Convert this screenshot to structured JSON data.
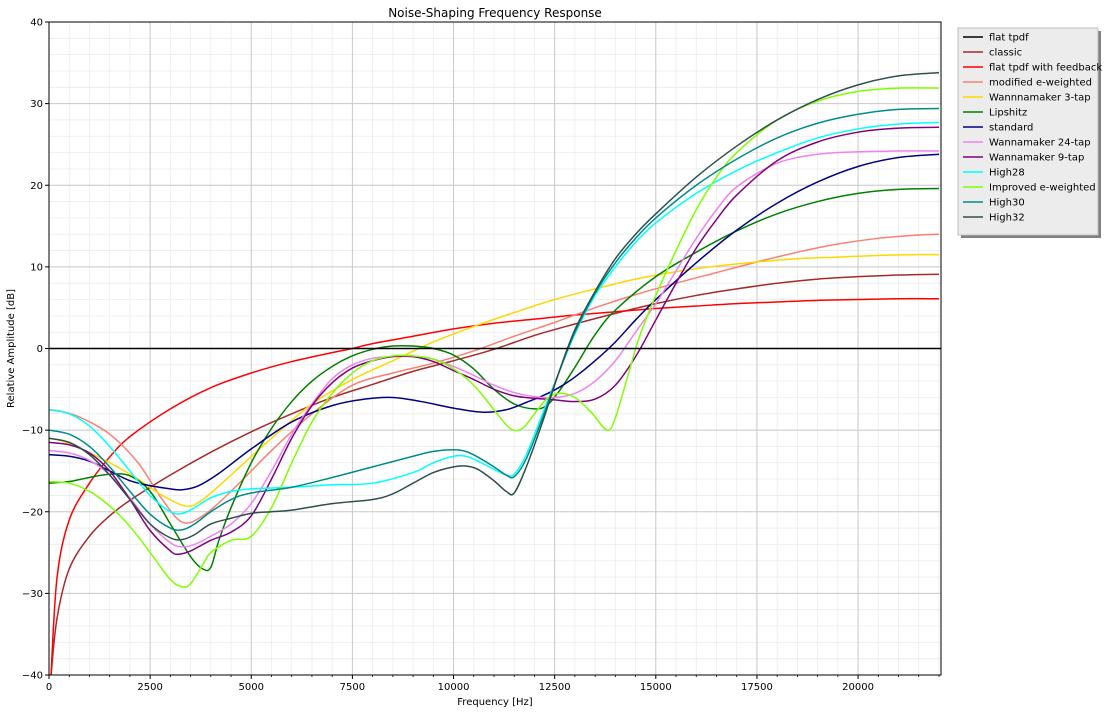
{
  "chart_data": {
    "type": "line",
    "title": "Noise-Shaping Frequency Response",
    "xlabel": "Frequency [Hz]",
    "ylabel": "Relative Amplitude [dB]",
    "xlim": [
      0,
      22050
    ],
    "ylim": [
      -40,
      40
    ],
    "x_ticks": [
      0,
      2500,
      5000,
      7500,
      10000,
      12500,
      15000,
      17500,
      20000
    ],
    "y_ticks": [
      -40,
      -30,
      -20,
      -10,
      0,
      10,
      20,
      30,
      40
    ],
    "grid": "major and minor",
    "legend_position": "outside upper right",
    "series": [
      {
        "name": "flat tpdf",
        "color": "#000000",
        "x": [
          0,
          22050
        ],
        "y": [
          0,
          0
        ]
      },
      {
        "name": "classic",
        "color": "#a52a2a",
        "x": [
          50,
          200,
          500,
          1000,
          1500,
          2000,
          3000,
          4000,
          5000,
          6000,
          7000,
          8000,
          9000,
          10000,
          11000,
          12000,
          13000,
          14000,
          15000,
          16000,
          17000,
          18000,
          19000,
          20000,
          21000,
          22000
        ],
        "y": [
          -40,
          -33,
          -27,
          -23,
          -20.5,
          -18.6,
          -15.5,
          -12.7,
          -10.2,
          -8,
          -6,
          -4.4,
          -2.8,
          -1.5,
          -0.1,
          1.6,
          3,
          4.3,
          5.5,
          6.5,
          7.3,
          8,
          8.5,
          8.8,
          9,
          9.1
        ]
      },
      {
        "name": "flat tpdf with feedback",
        "color": "#ff0000",
        "x": [
          50,
          200,
          500,
          1000,
          1500,
          2000,
          3000,
          4000,
          5000,
          6000,
          7000,
          7500,
          8000,
          9000,
          10000,
          11000,
          12000,
          13000,
          14000,
          15000,
          16000,
          17000,
          18000,
          19000,
          20000,
          21000,
          22000
        ],
        "y": [
          -40,
          -28,
          -21,
          -16.5,
          -13.3,
          -10.8,
          -7.4,
          -4.8,
          -3,
          -1.6,
          -0.5,
          0,
          0.6,
          1.5,
          2.4,
          3.1,
          3.6,
          4.1,
          4.5,
          4.9,
          5.2,
          5.5,
          5.7,
          5.9,
          6,
          6.1,
          6.1
        ]
      },
      {
        "name": "modified e-weighted",
        "color": "#fa8072",
        "x": [
          0,
          300,
          800,
          1500,
          2200,
          2800,
          3300,
          3800,
          4500,
          5500,
          6500,
          7500,
          8500,
          9500,
          10500,
          11500,
          12500,
          13500,
          14500,
          15500,
          16500,
          17500,
          18500,
          19500,
          20500,
          21500,
          22000
        ],
        "y": [
          -7.5,
          -7.7,
          -8.5,
          -10.5,
          -14,
          -18.5,
          -21.3,
          -20.5,
          -17.5,
          -12.5,
          -8,
          -4.5,
          -3,
          -1.8,
          -0.3,
          1.5,
          3.2,
          5,
          6.6,
          8,
          9.3,
          10.6,
          11.8,
          12.8,
          13.5,
          13.9,
          14
        ]
      },
      {
        "name": "Wannnamaker 3-tap",
        "color": "#ffd700",
        "x": [
          0,
          300,
          800,
          1500,
          2200,
          2800,
          3400,
          3800,
          4500,
          5500,
          6500,
          7500,
          8500,
          9500,
          10500,
          11500,
          12500,
          13500,
          14500,
          15500,
          16500,
          17500,
          18500,
          19500,
          20500,
          21500,
          22000
        ],
        "y": [
          -11,
          -11.3,
          -12.3,
          -14,
          -16,
          -18,
          -19.3,
          -18.5,
          -15.5,
          -11,
          -6.8,
          -3.8,
          -1.5,
          0.8,
          2.7,
          4.4,
          6,
          7.3,
          8.5,
          9.4,
          10.1,
          10.6,
          11,
          11.2,
          11.4,
          11.5,
          11.5
        ]
      },
      {
        "name": "Lipshitz",
        "color": "#008000",
        "x": [
          0,
          500,
          1000,
          1500,
          2000,
          2500,
          3000,
          3500,
          3800,
          4000,
          4200,
          4500,
          5000,
          5500,
          6000,
          6500,
          7000,
          7500,
          8000,
          8500,
          9000,
          9500,
          10000,
          10500,
          11000,
          11500,
          12000,
          12300,
          12600,
          13000,
          13500,
          14000,
          15000,
          16000,
          17000,
          18000,
          19000,
          20000,
          21000,
          22000
        ],
        "y": [
          -16.5,
          -16.3,
          -15.8,
          -15.4,
          -15.6,
          -17.5,
          -21.5,
          -25.5,
          -27,
          -26.8,
          -23.5,
          -19.5,
          -14,
          -9.8,
          -6.5,
          -4,
          -2.2,
          -0.9,
          -0.1,
          0.3,
          0.3,
          0,
          -0.8,
          -2.5,
          -5,
          -6.8,
          -7.4,
          -7,
          -5.3,
          -2.3,
          1.7,
          4.7,
          8.8,
          11.8,
          14.4,
          16.5,
          18,
          19,
          19.5,
          19.6
        ]
      },
      {
        "name": "standard",
        "color": "#000080",
        "x": [
          0,
          500,
          1000,
          1500,
          2000,
          2500,
          3000,
          3300,
          3700,
          4200,
          5000,
          6000,
          7000,
          7800,
          8500,
          9200,
          10000,
          10700,
          11300,
          11800,
          12200,
          12600,
          13000,
          13500,
          14000,
          14500,
          15000,
          16000,
          17000,
          18000,
          19000,
          20000,
          21000,
          22000
        ],
        "y": [
          -13,
          -13.2,
          -13.8,
          -15,
          -16.2,
          -16.8,
          -17.2,
          -17.3,
          -16.8,
          -15.3,
          -12.3,
          -9,
          -7,
          -6.2,
          -6,
          -6.5,
          -7.3,
          -7.8,
          -7.5,
          -6.6,
          -5.8,
          -4.8,
          -3.5,
          -1.5,
          0.8,
          3.5,
          6,
          10.5,
          14.5,
          17.8,
          20.4,
          22.3,
          23.4,
          23.8
        ]
      },
      {
        "name": "Wannamaker 24-tap",
        "color": "#ee82ee",
        "x": [
          0,
          500,
          1000,
          1500,
          2000,
          2500,
          3000,
          3300,
          3600,
          4000,
          4500,
          5000,
          5500,
          6000,
          6500,
          7000,
          7500,
          8000,
          8500,
          9000,
          9500,
          10000,
          10500,
          11000,
          11500,
          12000,
          12500,
          13000,
          13500,
          14000,
          14500,
          15000,
          15500,
          16000,
          16500,
          17000,
          18000,
          19000,
          20000,
          21000,
          22000
        ],
        "y": [
          -12.5,
          -12.8,
          -13.7,
          -15.5,
          -18.3,
          -21.5,
          -23.8,
          -24.3,
          -24,
          -23,
          -21.5,
          -19,
          -15,
          -10.5,
          -6.8,
          -3.7,
          -2,
          -1.2,
          -1,
          -1,
          -1.3,
          -2.2,
          -3.3,
          -4.5,
          -5.4,
          -5.9,
          -6,
          -5.5,
          -4,
          -1.5,
          2,
          5.5,
          9.5,
          13.5,
          17,
          19.8,
          22.7,
          23.8,
          24.1,
          24.2,
          24.2
        ]
      },
      {
        "name": "Wannamaker 9-tap",
        "color": "#800080",
        "x": [
          0,
          500,
          1000,
          1500,
          2000,
          2500,
          3000,
          3200,
          3500,
          4000,
          4500,
          5000,
          5500,
          6000,
          6500,
          7000,
          7500,
          8000,
          8500,
          9000,
          9500,
          10000,
          10500,
          11000,
          11500,
          12000,
          12500,
          13000,
          13500,
          14000,
          14500,
          15000,
          15500,
          16000,
          16500,
          17000,
          18000,
          19000,
          20000,
          21000,
          22000
        ],
        "y": [
          -11.5,
          -11.8,
          -12.8,
          -15,
          -18.5,
          -22.3,
          -24.8,
          -25.2,
          -24.8,
          -23.5,
          -22.5,
          -20.5,
          -16,
          -11,
          -7,
          -4.2,
          -2.4,
          -1.5,
          -1,
          -1,
          -1.6,
          -2.7,
          -3.8,
          -5,
          -5.8,
          -6.1,
          -6.3,
          -6.5,
          -6.2,
          -4.5,
          -1,
          3.5,
          8,
          12.3,
          15.8,
          18.8,
          23,
          25.3,
          26.5,
          27,
          27.1
        ]
      },
      {
        "name": "High28",
        "color": "#00ffff",
        "x": [
          0,
          500,
          1000,
          1500,
          2000,
          2500,
          3000,
          3300,
          3600,
          4000,
          4500,
          5000,
          6000,
          7000,
          8000,
          9000,
          9500,
          10000,
          10300,
          10600,
          11000,
          11300,
          11500,
          11800,
          12200,
          12600,
          13000,
          13500,
          14000,
          14500,
          15000,
          16000,
          17000,
          18000,
          19000,
          20000,
          21000,
          22000
        ],
        "y": [
          -7.5,
          -8,
          -9.5,
          -12,
          -15,
          -18,
          -20,
          -20.2,
          -19.5,
          -18.3,
          -17.5,
          -17.2,
          -17,
          -16.7,
          -16.5,
          -15.2,
          -14,
          -13.2,
          -13.2,
          -13.8,
          -14.8,
          -15.5,
          -15.4,
          -13,
          -8,
          -3,
          1.8,
          6.5,
          10,
          13,
          15.4,
          19,
          21.8,
          24,
          25.8,
          26.9,
          27.5,
          27.7
        ]
      },
      {
        "name": "Improved e-weighted",
        "color": "#7fff00",
        "x": [
          0,
          500,
          1000,
          1500,
          2000,
          2500,
          3000,
          3300,
          3500,
          3800,
          4000,
          4500,
          5000,
          5500,
          6000,
          6500,
          7000,
          7500,
          8000,
          8500,
          9000,
          9500,
          10000,
          10500,
          11000,
          11400,
          11700,
          12000,
          12300,
          12600,
          13000,
          13400,
          13800,
          14000,
          14300,
          14600,
          15000,
          15500,
          16000,
          16500,
          17000,
          18000,
          19000,
          20000,
          21000,
          22000
        ],
        "y": [
          -16.3,
          -16.5,
          -17.5,
          -19.3,
          -21.8,
          -25,
          -28.3,
          -29.2,
          -28.8,
          -26.5,
          -25,
          -23.5,
          -23,
          -19.5,
          -14,
          -9,
          -5.5,
          -3,
          -1.5,
          -0.9,
          -0.9,
          -1.3,
          -2.5,
          -4.5,
          -7.5,
          -9.8,
          -9.8,
          -8,
          -6.2,
          -5.5,
          -6,
          -7.8,
          -10,
          -8.5,
          -3.5,
          1.5,
          6.5,
          12,
          17,
          21,
          24,
          28,
          30.3,
          31.5,
          31.9,
          31.9
        ]
      },
      {
        "name": "High30",
        "color": "#008b8b",
        "x": [
          0,
          500,
          1000,
          1500,
          2000,
          2500,
          3000,
          3300,
          3600,
          4000,
          4500,
          5000,
          6000,
          7000,
          8000,
          9000,
          9500,
          10000,
          10300,
          10600,
          11000,
          11300,
          11500,
          11800,
          12200,
          12600,
          13000,
          13500,
          14000,
          14500,
          15000,
          16000,
          17000,
          18000,
          19000,
          20000,
          21000,
          22000
        ],
        "y": [
          -10,
          -10.5,
          -12,
          -14.5,
          -17.5,
          -20.3,
          -22,
          -22.2,
          -21.5,
          -20,
          -18.5,
          -17.7,
          -17,
          -15.8,
          -14.5,
          -13.2,
          -12.6,
          -12.4,
          -12.6,
          -13.3,
          -14.5,
          -15.5,
          -15.7,
          -13.5,
          -8.5,
          -3,
          2,
          6.8,
          10.5,
          13.5,
          16,
          20,
          23.2,
          25.8,
          27.6,
          28.7,
          29.3,
          29.4
        ]
      },
      {
        "name": "High32",
        "color": "#2f4f4f",
        "x": [
          0,
          500,
          1000,
          1500,
          2000,
          2500,
          3000,
          3300,
          3600,
          4000,
          4500,
          5000,
          5500,
          6000,
          7000,
          8000,
          8500,
          9000,
          9500,
          10000,
          10300,
          10600,
          11000,
          11300,
          11500,
          11800,
          12200,
          12600,
          13000,
          13500,
          14000,
          14500,
          15000,
          16000,
          17000,
          18000,
          19000,
          20000,
          21000,
          22000
        ],
        "y": [
          -11,
          -11.5,
          -13,
          -15.5,
          -18.5,
          -21.5,
          -23.2,
          -23.4,
          -22.8,
          -21.5,
          -20.8,
          -20.2,
          -20,
          -19.8,
          -19,
          -18.5,
          -17.8,
          -16.5,
          -15.2,
          -14.5,
          -14.4,
          -14.8,
          -16.2,
          -17.5,
          -17.7,
          -14.5,
          -9,
          -3,
          2.3,
          7,
          11,
          14,
          16.5,
          21,
          24.8,
          28,
          30.5,
          32.3,
          33.4,
          33.8
        ]
      }
    ]
  }
}
